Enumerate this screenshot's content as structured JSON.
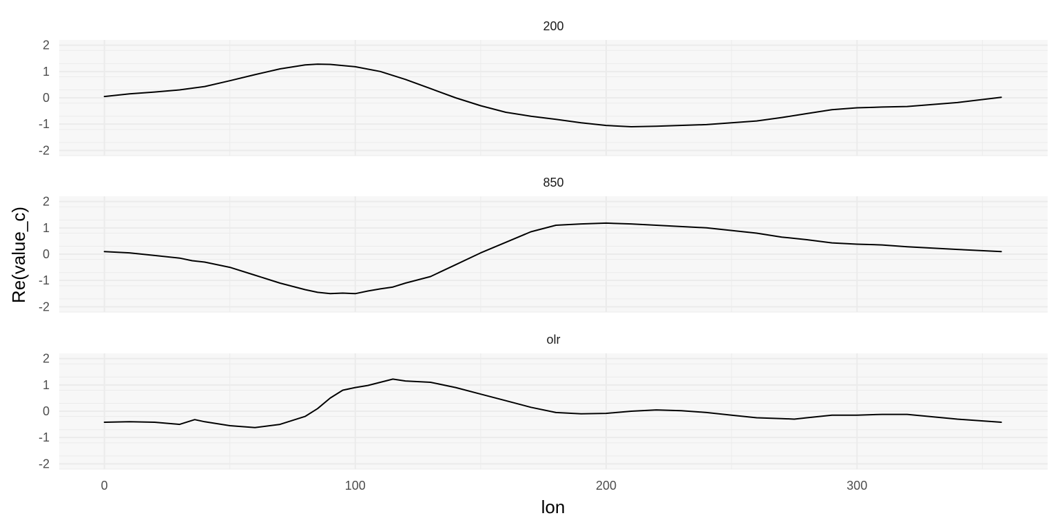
{
  "chart_data": {
    "type": "line",
    "facet_layout": "vertical",
    "xlabel": "lon",
    "ylabel": "Re(value_c)",
    "xlim": [
      -18,
      376
    ],
    "ylim": [
      -2.2,
      2.2
    ],
    "x_ticks": [
      0,
      100,
      200,
      300
    ],
    "y_ticks": [
      -2,
      -1,
      0,
      1,
      2
    ],
    "grid": true,
    "facets": [
      {
        "label": "200",
        "x": [
          0,
          10,
          20,
          30,
          40,
          50,
          60,
          70,
          80,
          85,
          90,
          100,
          110,
          120,
          130,
          140,
          150,
          160,
          170,
          180,
          190,
          200,
          210,
          220,
          240,
          260,
          270,
          280,
          290,
          300,
          310,
          320,
          340,
          357.5
        ],
        "values": [
          0.05,
          0.15,
          0.22,
          0.3,
          0.43,
          0.65,
          0.88,
          1.1,
          1.25,
          1.28,
          1.27,
          1.18,
          1.0,
          0.7,
          0.35,
          0.0,
          -0.3,
          -0.55,
          -0.7,
          -0.82,
          -0.95,
          -1.05,
          -1.1,
          -1.08,
          -1.02,
          -0.88,
          -0.75,
          -0.6,
          -0.45,
          -0.38,
          -0.35,
          -0.33,
          -0.18,
          0.02
        ]
      },
      {
        "label": "850",
        "x": [
          0,
          10,
          20,
          30,
          35,
          40,
          50,
          60,
          70,
          80,
          85,
          90,
          95,
          100,
          105,
          110,
          115,
          120,
          130,
          140,
          150,
          160,
          170,
          180,
          190,
          200,
          210,
          220,
          240,
          260,
          270,
          280,
          290,
          300,
          310,
          320,
          340,
          357.5
        ],
        "values": [
          0.1,
          0.05,
          -0.05,
          -0.15,
          -0.25,
          -0.3,
          -0.5,
          -0.8,
          -1.1,
          -1.35,
          -1.45,
          -1.5,
          -1.48,
          -1.5,
          -1.4,
          -1.32,
          -1.25,
          -1.1,
          -0.85,
          -0.4,
          0.05,
          0.45,
          0.85,
          1.1,
          1.15,
          1.18,
          1.15,
          1.1,
          1.0,
          0.8,
          0.65,
          0.55,
          0.43,
          0.38,
          0.35,
          0.28,
          0.18,
          0.1
        ]
      },
      {
        "label": "olr",
        "x": [
          0,
          10,
          20,
          30,
          36,
          40,
          50,
          60,
          70,
          80,
          85,
          90,
          95,
          100,
          105,
          110,
          115,
          120,
          130,
          140,
          150,
          160,
          170,
          180,
          190,
          200,
          210,
          220,
          230,
          240,
          250,
          260,
          270,
          275,
          280,
          290,
          300,
          310,
          320,
          340,
          357.5
        ],
        "values": [
          -0.42,
          -0.4,
          -0.42,
          -0.5,
          -0.32,
          -0.4,
          -0.55,
          -0.62,
          -0.5,
          -0.2,
          0.1,
          0.5,
          0.8,
          0.9,
          0.98,
          1.1,
          1.22,
          1.15,
          1.1,
          0.9,
          0.65,
          0.4,
          0.15,
          -0.05,
          -0.1,
          -0.08,
          0.0,
          0.05,
          0.02,
          -0.05,
          -0.15,
          -0.25,
          -0.28,
          -0.3,
          -0.25,
          -0.15,
          -0.15,
          -0.12,
          -0.12,
          -0.3,
          -0.42
        ]
      }
    ]
  }
}
